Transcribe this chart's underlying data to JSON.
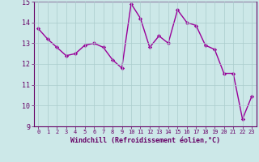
{
  "x": [
    0,
    1,
    2,
    3,
    4,
    5,
    6,
    7,
    8,
    9,
    10,
    11,
    12,
    13,
    14,
    15,
    16,
    17,
    18,
    19,
    20,
    21,
    22,
    23
  ],
  "y": [
    13.7,
    13.2,
    12.8,
    12.4,
    12.5,
    12.9,
    13.0,
    12.8,
    12.2,
    11.8,
    14.9,
    14.2,
    12.8,
    13.35,
    13.0,
    14.6,
    14.0,
    13.85,
    12.9,
    12.7,
    11.55,
    11.55,
    9.35,
    10.45
  ],
  "line_color": "#990099",
  "marker": "D",
  "marker_size": 2.2,
  "bg_color": "#cce8e8",
  "grid_color": "#aacccc",
  "xlabel": "Windchill (Refroidissement éolien,°C)",
  "xlim": [
    -0.5,
    23.5
  ],
  "ylim": [
    9,
    15
  ],
  "yticks": [
    9,
    10,
    11,
    12,
    13,
    14,
    15
  ],
  "xticks": [
    0,
    1,
    2,
    3,
    4,
    5,
    6,
    7,
    8,
    9,
    10,
    11,
    12,
    13,
    14,
    15,
    16,
    17,
    18,
    19,
    20,
    21,
    22,
    23
  ],
  "label_color": "#660066",
  "tick_label_color": "#660066",
  "line_width": 1.0,
  "xlabel_fontsize": 6.0,
  "ytick_fontsize": 6.0,
  "xtick_fontsize": 5.0
}
